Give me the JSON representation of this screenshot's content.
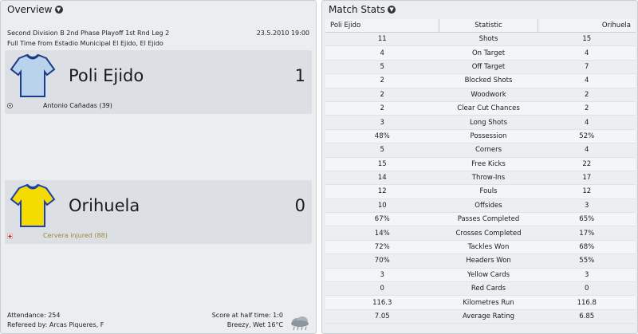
{
  "overview": {
    "title": "Overview",
    "competition": "Second Division B 2nd Phase Playoff 1st Rnd Leg 2",
    "date": "23.5.2010 19:00",
    "venue": "Full Time from Estadio Municipal El Ejido, El Ejido",
    "home": {
      "name": "Poli Ejido",
      "score": "1",
      "event": "Antonio Cañadas (39)",
      "event_icon": "goal-ball-icon",
      "shirt_color": "#b9d3ec"
    },
    "away": {
      "name": "Orihuela",
      "score": "0",
      "event": "Cervera injured (88)",
      "event_icon": "injury-icon",
      "shirt_color": "#f4dc00"
    },
    "attendance": "Attendance: 254",
    "referee": "Refereed by: Arcas Piqueres, F",
    "halftime": "Score at half time: 1:0",
    "weather": "Breezy, Wet 16°C",
    "event_color_injury": "#9a8a3c"
  },
  "stats": {
    "title": "Match Stats",
    "headers": {
      "home": "Poli Ejido",
      "stat": "Statistic",
      "away": "Orihuela"
    },
    "rows": [
      {
        "home": "11",
        "label": "Shots",
        "away": "15"
      },
      {
        "home": "4",
        "label": "On Target",
        "away": "4"
      },
      {
        "home": "5",
        "label": "Off Target",
        "away": "7"
      },
      {
        "home": "2",
        "label": "Blocked Shots",
        "away": "4"
      },
      {
        "home": "2",
        "label": "Woodwork",
        "away": "2"
      },
      {
        "home": "2",
        "label": "Clear Cut Chances",
        "away": "2"
      },
      {
        "home": "3",
        "label": "Long Shots",
        "away": "4"
      },
      {
        "home": "48%",
        "label": "Possession",
        "away": "52%"
      },
      {
        "home": "5",
        "label": "Corners",
        "away": "4"
      },
      {
        "home": "15",
        "label": "Free Kicks",
        "away": "22"
      },
      {
        "home": "14",
        "label": "Throw-Ins",
        "away": "17"
      },
      {
        "home": "12",
        "label": "Fouls",
        "away": "12"
      },
      {
        "home": "10",
        "label": "Offsides",
        "away": "3"
      },
      {
        "home": "67%",
        "label": "Passes Completed",
        "away": "65%"
      },
      {
        "home": "14%",
        "label": "Crosses Completed",
        "away": "17%"
      },
      {
        "home": "72%",
        "label": "Tackles Won",
        "away": "68%"
      },
      {
        "home": "70%",
        "label": "Headers Won",
        "away": "55%"
      },
      {
        "home": "3",
        "label": "Yellow Cards",
        "away": "3"
      },
      {
        "home": "0",
        "label": "Red Cards",
        "away": "0"
      },
      {
        "home": "116.3",
        "label": "Kilometres Run",
        "away": "116.8"
      },
      {
        "home": "7.05",
        "label": "Average Rating",
        "away": "6.85"
      }
    ]
  }
}
